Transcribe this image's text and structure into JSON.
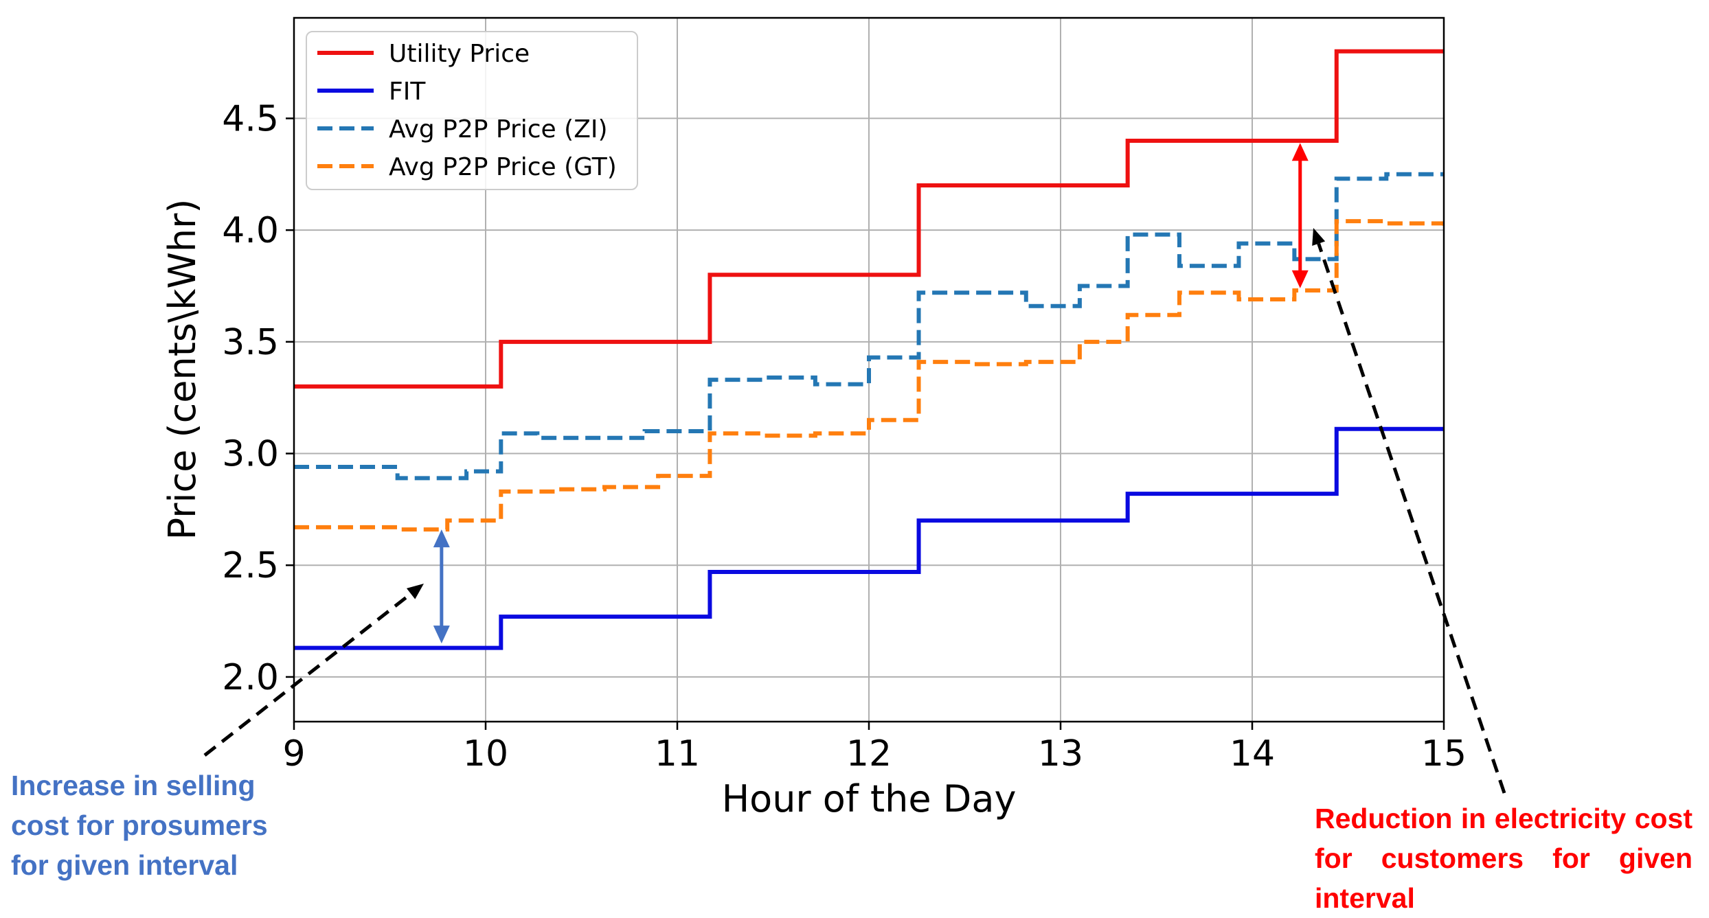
{
  "chart_data": {
    "type": "line",
    "step": true,
    "xlabel": "Hour of the Day",
    "ylabel": "Price (cents\\kWhr)",
    "xlim": [
      9,
      15
    ],
    "ylim": [
      1.8,
      4.95
    ],
    "xticks": [
      9,
      10,
      11,
      12,
      13,
      14,
      15
    ],
    "yticks": [
      2.0,
      2.5,
      3.0,
      3.5,
      4.0,
      4.5
    ],
    "ytick_labels": [
      "2.0",
      "2.5",
      "3.0",
      "3.5",
      "4.0",
      "4.5"
    ],
    "grid": true,
    "legend_position": "top-left",
    "series": [
      {
        "name": "Utility Price",
        "color": "#ee1111",
        "style": "solid",
        "x": [
          9.0,
          10.08,
          11.17,
          12.26,
          13.35,
          14.44,
          15.0
        ],
        "y": [
          3.3,
          3.5,
          3.8,
          4.2,
          4.4,
          4.8,
          4.8
        ]
      },
      {
        "name": "FIT",
        "color": "#0a0ae0",
        "style": "solid",
        "x": [
          9.0,
          10.08,
          11.17,
          12.26,
          13.35,
          14.44,
          15.0
        ],
        "y": [
          2.13,
          2.27,
          2.47,
          2.7,
          2.82,
          3.11,
          3.11
        ]
      },
      {
        "name": "Avg P2P Price (ZI)",
        "color": "#2477b4",
        "style": "dashed",
        "x": [
          9.0,
          9.3,
          9.54,
          9.9,
          10.08,
          10.27,
          10.53,
          10.83,
          11.17,
          11.45,
          11.72,
          12.0,
          12.26,
          12.55,
          12.82,
          13.1,
          13.35,
          13.62,
          13.93,
          14.22,
          14.44,
          14.7,
          15.0
        ],
        "y": [
          2.94,
          2.94,
          2.89,
          2.92,
          3.09,
          3.07,
          3.07,
          3.1,
          3.33,
          3.34,
          3.31,
          3.43,
          3.72,
          3.72,
          3.66,
          3.75,
          3.98,
          3.84,
          3.94,
          3.87,
          4.23,
          4.25,
          4.25
        ]
      },
      {
        "name": "Avg P2P Price (GT)",
        "color": "#ff7f0e",
        "style": "dashed",
        "x": [
          9.0,
          9.3,
          9.54,
          9.8,
          10.08,
          10.36,
          10.62,
          10.9,
          11.17,
          11.45,
          11.72,
          12.0,
          12.26,
          12.55,
          12.82,
          13.1,
          13.35,
          13.62,
          13.93,
          14.22,
          14.44,
          14.7,
          15.0
        ],
        "y": [
          2.67,
          2.67,
          2.66,
          2.7,
          2.83,
          2.84,
          2.85,
          2.9,
          3.09,
          3.08,
          3.09,
          3.15,
          3.41,
          3.4,
          3.41,
          3.5,
          3.62,
          3.72,
          3.69,
          3.73,
          4.04,
          4.03,
          4.02
        ]
      }
    ],
    "annotations": {
      "left_note": {
        "text": "Increase in selling cost for prosumers for given interval",
        "color": "#4472c4"
      },
      "right_note": {
        "text": "Reduction in electricity cost for customers for given interval",
        "color": "#ff0000"
      },
      "blue_arrow": {
        "x": 9.77,
        "y_from": 2.15,
        "y_to": 2.66,
        "color": "#4472c4"
      },
      "red_arrow": {
        "x": 14.25,
        "y_from": 3.74,
        "y_to": 4.39,
        "color": "#ff0000"
      }
    }
  }
}
